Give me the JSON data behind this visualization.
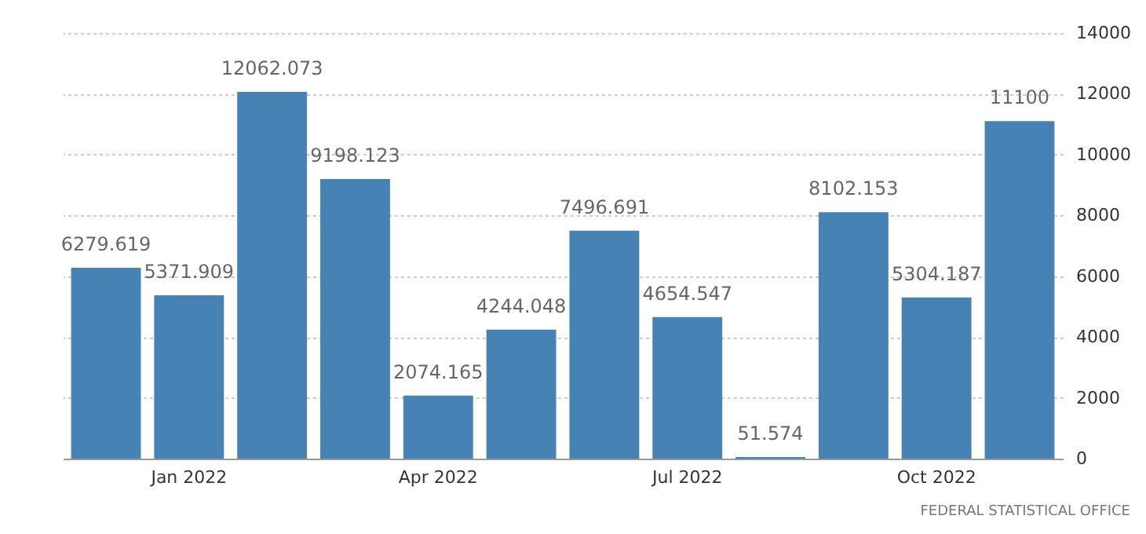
{
  "chart_data": {
    "type": "bar",
    "categories": [
      null,
      "Jan 2022",
      null,
      null,
      "Apr 2022",
      null,
      null,
      "Jul 2022",
      null,
      null,
      "Oct 2022",
      null
    ],
    "values": [
      6279.619,
      5371.909,
      12062.073,
      9198.123,
      2074.165,
      4244.048,
      7496.691,
      4654.547,
      51.574,
      8102.153,
      5304.187,
      11100
    ],
    "color": "#4682b4",
    "ylim": [
      0,
      14000
    ],
    "yticks": [
      0,
      2000,
      4000,
      6000,
      8000,
      10000,
      12000,
      14000
    ],
    "grid": "y",
    "data_labels": true,
    "annotations": [
      "FEDERAL STATISTICAL OFFICE"
    ]
  }
}
